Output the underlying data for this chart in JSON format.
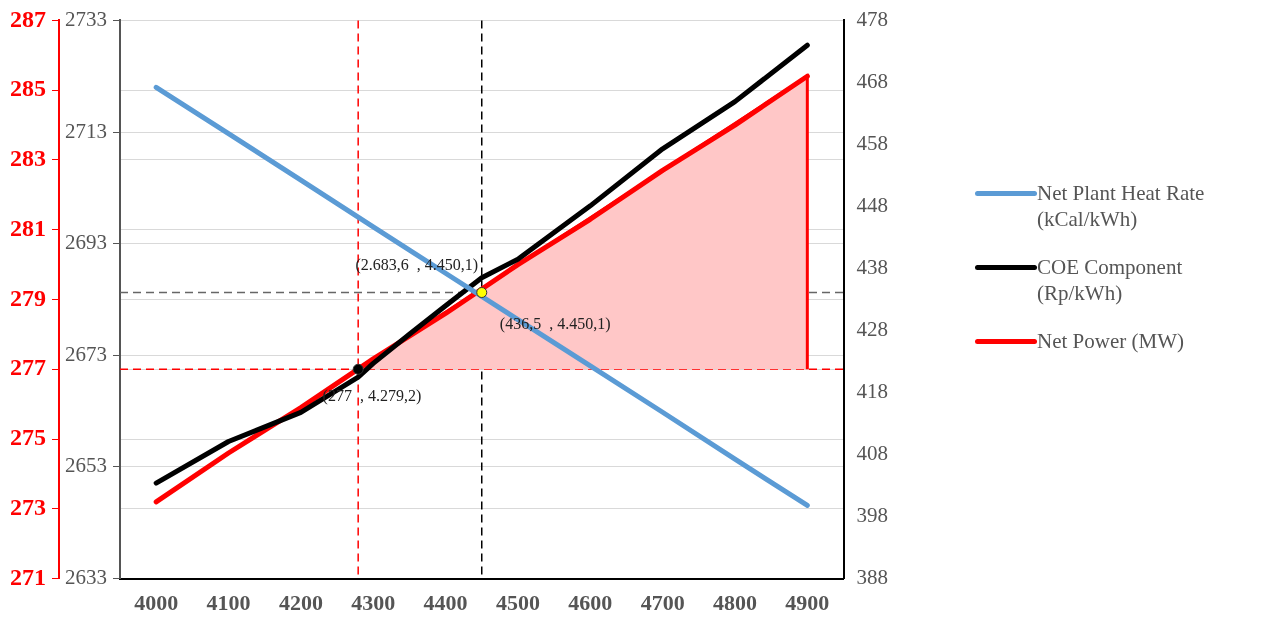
{
  "chart_data": {
    "type": "line",
    "xlim": [
      3950,
      4950
    ],
    "xticks": [
      4000,
      4100,
      4200,
      4300,
      4400,
      4500,
      4600,
      4700,
      4800,
      4900
    ],
    "ylim": [
      271,
      287
    ],
    "yticks": [
      271,
      273,
      275,
      277,
      279,
      281,
      283,
      285,
      287
    ],
    "y2lim": [
      388,
      478
    ],
    "y2ticks": [
      388,
      398,
      408,
      418,
      428,
      438,
      448,
      458,
      468,
      478
    ],
    "y3lim": [
      2633,
      2733
    ],
    "y3ticks": [
      2633,
      2653,
      2673,
      2693,
      2713,
      2733
    ],
    "grid": "y",
    "legend": "right",
    "marker": "none",
    "line_style": "solid",
    "series": [
      {
        "type": "area",
        "color": "#ffc7c7",
        "axis": "y",
        "x": [
          4279.2,
          4900,
          4900
        ],
        "values": [
          277,
          285.4,
          277
        ]
      },
      {
        "name": "Net Plant Heat Rate (kCal/kWh)",
        "color": "#5b9bd5",
        "axis": "y3",
        "x": [
          4000,
          4100,
          4200,
          4300,
          4400,
          4500,
          4600,
          4700,
          4800,
          4900
        ],
        "values": [
          2721.0,
          2712.7,
          2704.4,
          2696.0,
          2687.7,
          2679.4,
          2671.1,
          2662.8,
          2654.4,
          2646.1
        ]
      },
      {
        "name": "COE Component (Rp/kWh)",
        "color": "#000000",
        "axis": "y2",
        "x": [
          4000,
          4100,
          4200,
          4279.2,
          4300,
          4350,
          4400,
          4450,
          4500,
          4600,
          4700,
          4800,
          4900
        ],
        "values": [
          403.4,
          410.1,
          414.8,
          420.5,
          422.7,
          427.4,
          432.0,
          436.5,
          439.5,
          448.1,
          457.3,
          464.9,
          474.0
        ]
      },
      {
        "name": "Net Power (MW)",
        "color": "#ff0000",
        "axis": "y",
        "x": [
          4000,
          4100,
          4200,
          4300,
          4400,
          4500,
          4600,
          4700,
          4800,
          4900
        ],
        "values": [
          273.2,
          274.6,
          275.9,
          277.3,
          278.6,
          280.0,
          281.3,
          282.7,
          284.0,
          285.4
        ]
      },
      {
        "type": "scatter",
        "marker": "circle",
        "axis": "y",
        "x": [
          4279.2,
          4450
        ],
        "values": [
          277,
          279.2
        ],
        "colors": [
          "#000000",
          "#ffff00"
        ]
      }
    ],
    "ref_lines": [
      {
        "axis": "y",
        "value": 279.2,
        "color": "#666666",
        "line_style": "dashed"
      },
      {
        "axis": "x",
        "value": 4450,
        "color": "#000000",
        "line_style": "dashed"
      },
      {
        "axis": "y",
        "value": 277,
        "color": "#ff0000",
        "line_style": "dashed"
      },
      {
        "axis": "x",
        "value": 4279.2,
        "color": "#ff0000",
        "line_style": "dashed"
      }
    ],
    "annotations": [
      "(2.683,6  , 4.450,1)",
      "(436,5  , 4.450,1)",
      "(277  , 4.279,2)"
    ]
  }
}
